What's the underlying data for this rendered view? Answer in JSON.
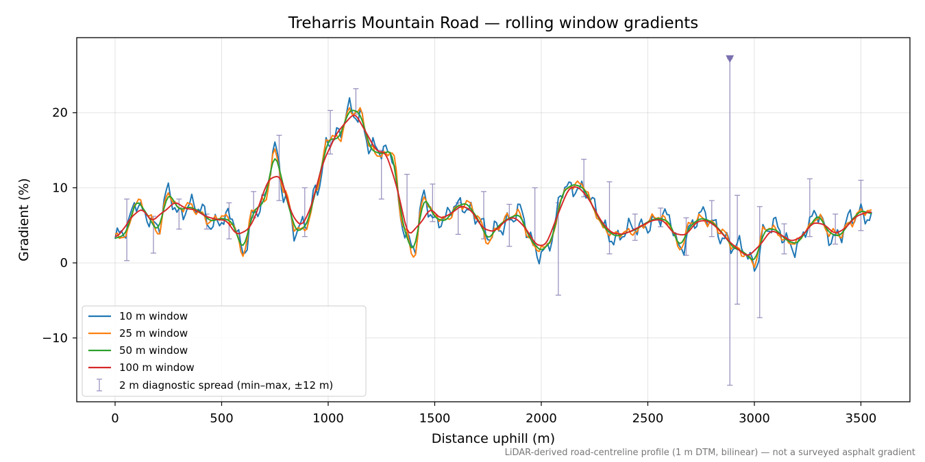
{
  "chart_data": {
    "type": "line",
    "title": "Treharris Mountain Road — rolling window gradients",
    "xlabel": "Distance uphill (m)",
    "ylabel": "Gradient (%)",
    "xlim": [
      -180,
      3730
    ],
    "ylim": [
      -18.5,
      30
    ],
    "xticks": [
      0,
      500,
      1000,
      1500,
      2000,
      2500,
      3000,
      3500
    ],
    "xtick_labels": [
      "0",
      "500",
      "1000",
      "1500",
      "2000",
      "2500",
      "3000",
      "3500"
    ],
    "yticks": [
      -10,
      0,
      10,
      20
    ],
    "ytick_labels": [
      "−10",
      "0",
      "10",
      "20"
    ],
    "grid": true,
    "legend_position": "lower-left",
    "footnote": "LiDAR-derived road-centreline profile (1 m DTM, bilinear) — not a surveyed asphalt gradient",
    "profile": {
      "x": [
        0,
        50,
        100,
        150,
        200,
        250,
        300,
        350,
        400,
        450,
        500,
        550,
        600,
        650,
        700,
        750,
        800,
        850,
        900,
        950,
        1000,
        1050,
        1100,
        1150,
        1200,
        1250,
        1300,
        1350,
        1400,
        1450,
        1500,
        1550,
        1600,
        1650,
        1700,
        1750,
        1800,
        1850,
        1900,
        1950,
        2000,
        2050,
        2100,
        2150,
        2200,
        2250,
        2300,
        2350,
        2400,
        2450,
        2500,
        2550,
        2600,
        2650,
        2700,
        2750,
        2800,
        2850,
        2900,
        2950,
        3000,
        3050,
        3100,
        3150,
        3200,
        3250,
        3300,
        3350,
        3400,
        3450,
        3500,
        3550
      ],
      "y": [
        3.2,
        3.8,
        8.5,
        6.5,
        4.0,
        9.5,
        7.0,
        7.5,
        6.8,
        5.5,
        6.0,
        5.5,
        1.5,
        7.0,
        8.0,
        15.0,
        9.0,
        4.0,
        5.0,
        10.5,
        16.5,
        16.5,
        20.5,
        20.0,
        15.0,
        14.5,
        15.0,
        5.0,
        1.0,
        9.0,
        6.0,
        5.5,
        7.5,
        8.0,
        6.0,
        3.0,
        5.0,
        6.0,
        6.5,
        3.0,
        1.5,
        3.0,
        9.5,
        10.5,
        10.0,
        7.0,
        4.5,
        3.5,
        4.0,
        4.5,
        5.5,
        6.0,
        5.5,
        2.0,
        5.0,
        6.0,
        5.5,
        4.0,
        2.0,
        1.5,
        0.0,
        4.5,
        4.5,
        3.0,
        2.5,
        4.5,
        6.5,
        4.0,
        3.5,
        5.5,
        7.0,
        6.5
      ]
    },
    "series": [
      {
        "name": "10 m window",
        "color": "#1f77b4",
        "smoothing": 1,
        "noise": 1.0
      },
      {
        "name": "25 m window",
        "color": "#ff7f0e",
        "smoothing": 1,
        "noise": 0.45
      },
      {
        "name": "50 m window",
        "color": "#2ca02c",
        "smoothing": 2,
        "noise": 0.0
      },
      {
        "name": "100 m window",
        "color": "#d62728",
        "smoothing": 5,
        "noise": 0.0
      }
    ],
    "spread": {
      "name": "2 m diagnostic spread (min–max, ±12 m)",
      "color": "#9a93bf",
      "items": [
        {
          "x": 55,
          "min": 0.3,
          "max": 8.5
        },
        {
          "x": 180,
          "min": 1.3,
          "max": 6.2
        },
        {
          "x": 300,
          "min": 4.5,
          "max": 8.5
        },
        {
          "x": 430,
          "min": 4.5,
          "max": 6.5
        },
        {
          "x": 535,
          "min": 3.2,
          "max": 8.0
        },
        {
          "x": 650,
          "min": 6.0,
          "max": 9.5
        },
        {
          "x": 770,
          "min": 8.3,
          "max": 17.0
        },
        {
          "x": 890,
          "min": 3.5,
          "max": 10.0
        },
        {
          "x": 1010,
          "min": 14.5,
          "max": 20.3
        },
        {
          "x": 1130,
          "min": 19.8,
          "max": 23.2
        },
        {
          "x": 1250,
          "min": 8.5,
          "max": 15.0
        },
        {
          "x": 1370,
          "min": 3.6,
          "max": 11.8
        },
        {
          "x": 1490,
          "min": 5.5,
          "max": 10.5
        },
        {
          "x": 1610,
          "min": 3.8,
          "max": 8.0
        },
        {
          "x": 1730,
          "min": 3.2,
          "max": 9.5
        },
        {
          "x": 1850,
          "min": 2.2,
          "max": 7.8
        },
        {
          "x": 1970,
          "min": 2.3,
          "max": 10.0
        },
        {
          "x": 2080,
          "min": -4.3,
          "max": 8.0
        },
        {
          "x": 2200,
          "min": 8.8,
          "max": 13.8
        },
        {
          "x": 2320,
          "min": 1.2,
          "max": 10.8
        },
        {
          "x": 2440,
          "min": 3.0,
          "max": 6.5
        },
        {
          "x": 2560,
          "min": 4.8,
          "max": 7.3
        },
        {
          "x": 2680,
          "min": 1.0,
          "max": 6.0
        },
        {
          "x": 2800,
          "min": 3.5,
          "max": 8.3
        },
        {
          "x": 2885,
          "min": -16.3,
          "max": 27.2
        },
        {
          "x": 2920,
          "min": -5.5,
          "max": 9.0
        },
        {
          "x": 3025,
          "min": -7.3,
          "max": 7.5
        },
        {
          "x": 3140,
          "min": 1.2,
          "max": 5.2
        },
        {
          "x": 3260,
          "min": 3.5,
          "max": 11.2
        },
        {
          "x": 3380,
          "min": 2.5,
          "max": 6.5
        },
        {
          "x": 3500,
          "min": 4.3,
          "max": 11.0
        }
      ],
      "marker": {
        "x": 2885,
        "y": 27.2
      }
    }
  }
}
